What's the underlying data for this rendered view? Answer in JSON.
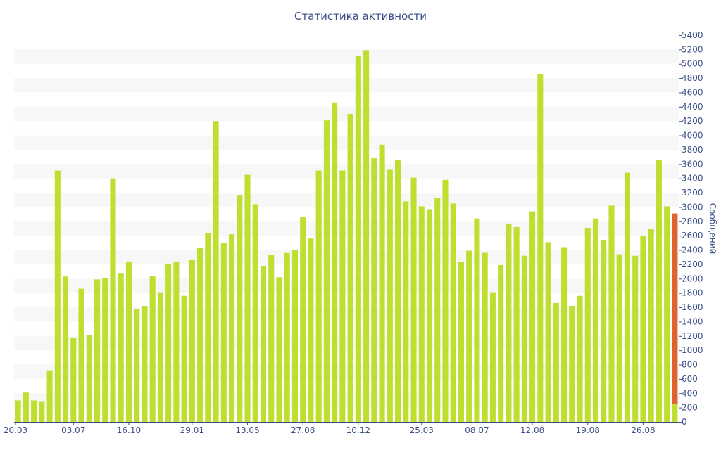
{
  "chart_data": {
    "type": "bar",
    "title": "Статистика активности",
    "ylabel": "Сообщений",
    "xlabel": "",
    "ylim": [
      0,
      5400
    ],
    "y_ticks": [
      0,
      200,
      400,
      600,
      800,
      1000,
      1200,
      1400,
      1600,
      1800,
      2000,
      2200,
      2400,
      2600,
      2800,
      3000,
      3200,
      3400,
      3600,
      3800,
      4000,
      4200,
      4400,
      4600,
      4800,
      5000,
      5200,
      5400
    ],
    "x_tick_labels": [
      {
        "index": 0,
        "label": "20.03"
      },
      {
        "index": 7,
        "label": "03.07"
      },
      {
        "index": 14,
        "label": "16.10"
      },
      {
        "index": 22,
        "label": "29.01"
      },
      {
        "index": 29,
        "label": "13.05"
      },
      {
        "index": 36,
        "label": "27.08"
      },
      {
        "index": 43,
        "label": "10.12"
      },
      {
        "index": 51,
        "label": "25.03"
      },
      {
        "index": 58,
        "label": "08.07"
      },
      {
        "index": 65,
        "label": "12.08"
      },
      {
        "index": 72,
        "label": "19.08"
      },
      {
        "index": 79,
        "label": "26.08"
      }
    ],
    "grid": "horizontal alternating bands",
    "colors": {
      "bar": "#bedf2f",
      "current_period": "#e0622e",
      "band": "#f7f7f7",
      "axis": "#3b4f86"
    },
    "series": [
      {
        "values": [
          300,
          410,
          300,
          280,
          720,
          3510,
          2030,
          1170,
          1860,
          1210,
          1990,
          2010,
          3400,
          2080,
          2240,
          1570,
          1620,
          2040,
          1810,
          2210,
          2240,
          1760,
          2260,
          2430,
          2640,
          4200,
          2500,
          2620,
          3160,
          3450,
          3040,
          2180,
          2330,
          2020,
          2360,
          2400,
          2860,
          2560,
          3510,
          4210,
          4460,
          3510,
          4300,
          5110,
          5190,
          3680,
          3870,
          3520,
          3660,
          3080,
          3410,
          3010,
          2970,
          3130,
          3380,
          3050,
          2230,
          2390,
          2840,
          2360,
          1810,
          2190,
          2770,
          2720,
          2320,
          2940,
          4860,
          2510,
          1660,
          2440,
          1620,
          1760,
          2710,
          2840,
          2540,
          3020,
          2340,
          3480,
          2320,
          2600,
          2700,
          3660,
          3010,
          250
        ]
      }
    ],
    "current_period": {
      "index": 83,
      "value": 250,
      "projected_total": 2910
    }
  }
}
